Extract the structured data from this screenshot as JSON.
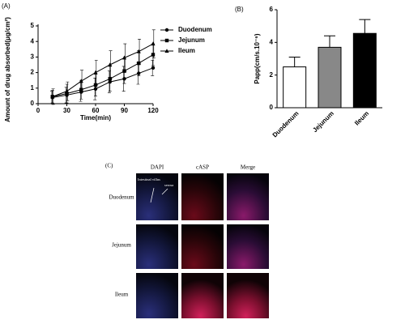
{
  "chart_data": [
    {
      "type": "line",
      "panel": "(A)",
      "xlabel": "Time(min)",
      "ylabel": "Amount of drug absorbed(μg/cm²)",
      "x": [
        15,
        30,
        45,
        60,
        75,
        90,
        105,
        120
      ],
      "xlim": [
        0,
        120
      ],
      "xticks": [
        0,
        30,
        60,
        90,
        120
      ],
      "ylim": [
        0,
        5
      ],
      "yticks": [
        0,
        1,
        2,
        3,
        4,
        5
      ],
      "series": [
        {
          "name": "Duodenum",
          "color": "#000000",
          "marker": "circle",
          "values": [
            0.4,
            0.55,
            0.75,
            0.95,
            1.4,
            1.6,
            1.95,
            2.3
          ],
          "errors": [
            0.4,
            0.5,
            0.6,
            0.7,
            0.7,
            0.8,
            0.7,
            0.5
          ]
        },
        {
          "name": "Jejunum",
          "color": "#000000",
          "marker": "square",
          "values": [
            0.45,
            0.65,
            0.9,
            1.2,
            1.6,
            2.1,
            2.6,
            3.15
          ],
          "errors": [
            0.4,
            0.6,
            0.6,
            0.7,
            0.8,
            0.8,
            0.8,
            0.7
          ]
        },
        {
          "name": "Ileum",
          "color": "#000000",
          "marker": "triangle",
          "values": [
            0.45,
            0.8,
            1.45,
            2.0,
            2.5,
            2.95,
            3.35,
            3.85
          ],
          "errors": [
            0.5,
            0.6,
            0.7,
            0.8,
            0.9,
            0.9,
            0.8,
            0.9
          ]
        }
      ]
    },
    {
      "type": "bar",
      "panel": "(B)",
      "ylabel": "Papp(cm/s.10⁻⁶)",
      "categories": [
        "Duodenum",
        "Jejunum",
        "Ileum"
      ],
      "values": [
        2.5,
        3.7,
        4.55
      ],
      "errors": [
        0.6,
        0.7,
        0.85
      ],
      "colors": [
        "#ffffff",
        "#888888",
        "#000000"
      ],
      "ylim": [
        0,
        6
      ],
      "yticks": [
        0,
        2,
        4,
        6
      ]
    }
  ],
  "panel_c": {
    "label": "(C)",
    "columns": [
      "DAPI",
      "cASP",
      "Merge"
    ],
    "rows": [
      "Duodenum",
      "Jejunum",
      "Ileum"
    ],
    "annotations": [
      "Intestinal villus",
      "serosa"
    ]
  }
}
